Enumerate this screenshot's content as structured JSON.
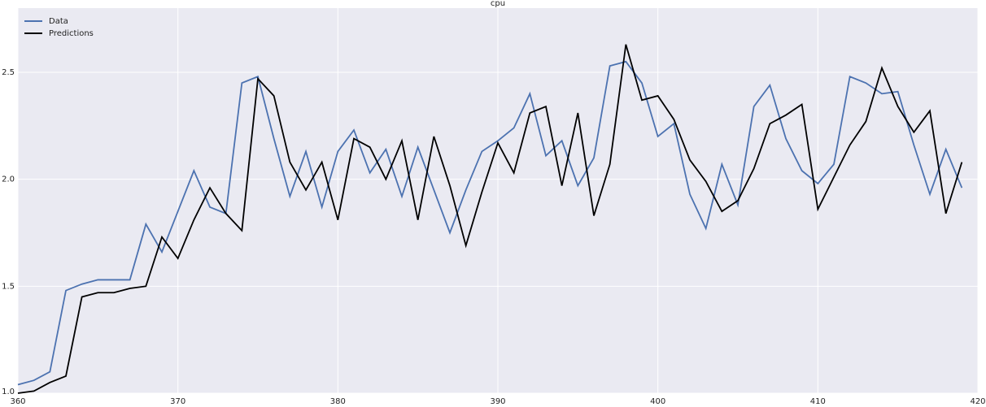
{
  "chart_data": {
    "type": "line",
    "title": "cpu",
    "x": [
      360,
      361,
      362,
      363,
      364,
      365,
      366,
      367,
      368,
      369,
      370,
      371,
      372,
      373,
      374,
      375,
      376,
      377,
      378,
      379,
      380,
      381,
      382,
      383,
      384,
      385,
      386,
      387,
      388,
      389,
      390,
      391,
      392,
      393,
      394,
      395,
      396,
      397,
      398,
      399,
      400,
      401,
      402,
      403,
      404,
      405,
      406,
      407,
      408,
      409,
      410,
      411,
      412,
      413,
      414,
      415,
      416,
      417,
      418,
      419
    ],
    "series": [
      {
        "name": "Data",
        "color": "#4c72b0",
        "values": [
          1.04,
          1.06,
          1.1,
          1.48,
          1.51,
          1.53,
          1.53,
          1.53,
          1.79,
          1.66,
          1.85,
          2.04,
          1.87,
          1.84,
          2.45,
          2.48,
          2.19,
          1.92,
          2.13,
          1.87,
          2.13,
          2.23,
          2.03,
          2.14,
          1.92,
          2.15,
          1.95,
          1.75,
          1.95,
          2.13,
          2.18,
          2.24,
          2.4,
          2.11,
          2.18,
          1.97,
          2.1,
          2.53,
          2.55,
          2.45,
          2.2,
          2.26,
          1.93,
          1.77,
          2.07,
          1.88,
          2.34,
          2.44,
          2.19,
          2.04,
          1.98,
          2.07,
          2.48,
          2.45,
          2.4,
          2.41,
          2.16,
          1.93,
          2.14,
          1.96
        ]
      },
      {
        "name": "Predictions",
        "color": "#000000",
        "values": [
          1.0,
          1.01,
          1.05,
          1.08,
          1.45,
          1.47,
          1.47,
          1.49,
          1.5,
          1.73,
          1.63,
          1.81,
          1.96,
          1.84,
          1.76,
          2.47,
          2.39,
          2.08,
          1.95,
          2.08,
          1.81,
          2.19,
          2.15,
          2.0,
          2.18,
          1.81,
          2.2,
          1.97,
          1.69,
          1.94,
          2.17,
          2.03,
          2.31,
          2.34,
          1.97,
          2.31,
          1.83,
          2.07,
          2.63,
          2.37,
          2.39,
          2.28,
          2.09,
          1.99,
          1.85,
          1.9,
          2.05,
          2.26,
          2.3,
          2.35,
          1.86,
          2.01,
          2.16,
          2.27,
          2.52,
          2.34,
          2.22,
          2.32,
          1.84,
          2.08
        ]
      }
    ],
    "xlim": [
      360,
      420
    ],
    "xticks": [
      360,
      370,
      380,
      390,
      400,
      410,
      420
    ],
    "ylim": [
      1.0,
      2.8
    ],
    "yticks": [
      {
        "value": 1.0,
        "label": "1.0"
      },
      1.5,
      {
        "value": 2.0,
        "label": "2.0"
      },
      2.5
    ],
    "grid": true,
    "legend": "upper left"
  }
}
